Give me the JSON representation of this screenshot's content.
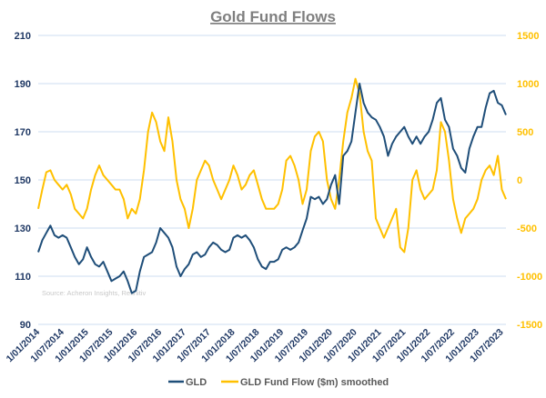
{
  "chart_data": {
    "type": "line",
    "title": "Gold Fund Flows",
    "source": "Source: Acheron Insights, Refinitiv",
    "x_start": "2014-01",
    "x_frequency": "monthly",
    "x_tick_labels": [
      "1/01/2014",
      "1/07/2014",
      "1/01/2015",
      "1/07/2015",
      "1/01/2016",
      "1/07/2016",
      "1/01/2017",
      "1/07/2017",
      "1/01/2018",
      "1/07/2018",
      "1/01/2019",
      "1/07/2019",
      "1/01/2020",
      "1/07/2020",
      "1/01/2021",
      "1/07/2021",
      "1/01/2022",
      "1/07/2022",
      "1/01/2023",
      "1/07/2023"
    ],
    "left_axis": {
      "ylim": [
        90,
        210
      ],
      "ticks": [
        90,
        110,
        130,
        150,
        170,
        190,
        210
      ]
    },
    "right_axis": {
      "ylim": [
        -1500,
        1500
      ],
      "ticks": [
        -1500,
        -1000,
        -500,
        0,
        500,
        1000,
        1500
      ]
    },
    "grid": true,
    "legend_position": "bottom",
    "series": [
      {
        "name": "GLD",
        "axis": "left",
        "color": "#1f4e79",
        "values": [
          120,
          125,
          128,
          131,
          127,
          126,
          127,
          126,
          122,
          118,
          115,
          117,
          122,
          118,
          115,
          114,
          116,
          112,
          108,
          109,
          110,
          112,
          108,
          103,
          104,
          112,
          118,
          119,
          120,
          124,
          130,
          128,
          126,
          122,
          114,
          110,
          113,
          115,
          119,
          120,
          118,
          119,
          122,
          124,
          123,
          121,
          120,
          121,
          126,
          127,
          126,
          127,
          125,
          122,
          117,
          114,
          113,
          116,
          116,
          117,
          121,
          122,
          121,
          122,
          124,
          129,
          134,
          143,
          142,
          143,
          140,
          142,
          148,
          152,
          140,
          160,
          162,
          166,
          178,
          190,
          182,
          178,
          176,
          175,
          172,
          168,
          160,
          165,
          168,
          170,
          172,
          168,
          165,
          168,
          165,
          168,
          170,
          175,
          182,
          184,
          175,
          172,
          163,
          160,
          155,
          153,
          163,
          168,
          172,
          172,
          180,
          186,
          187,
          182,
          181,
          177
        ]
      },
      {
        "name": "GLD Fund Flow ($m) smoothed",
        "axis": "right",
        "color": "#ffc000",
        "values": [
          -300,
          -100,
          80,
          100,
          0,
          -50,
          -100,
          -50,
          -150,
          -300,
          -350,
          -400,
          -300,
          -100,
          50,
          150,
          50,
          0,
          -50,
          -100,
          -100,
          -200,
          -400,
          -300,
          -350,
          -200,
          100,
          500,
          700,
          600,
          400,
          300,
          650,
          400,
          0,
          -200,
          -300,
          -500,
          -300,
          0,
          100,
          200,
          150,
          0,
          -100,
          -200,
          -100,
          0,
          150,
          50,
          -100,
          -50,
          50,
          100,
          -50,
          -200,
          -300,
          -300,
          -300,
          -250,
          -100,
          200,
          250,
          150,
          0,
          -250,
          -100,
          300,
          450,
          500,
          400,
          0,
          -200,
          -300,
          0,
          400,
          700,
          850,
          1050,
          900,
          500,
          300,
          200,
          -400,
          -500,
          -600,
          -500,
          -400,
          -300,
          -700,
          -750,
          -500,
          0,
          100,
          -100,
          -200,
          -150,
          -100,
          100,
          600,
          500,
          200,
          -200,
          -400,
          -550,
          -400,
          -350,
          -300,
          -200,
          0,
          100,
          150,
          50,
          250,
          -100,
          -200
        ]
      }
    ]
  }
}
